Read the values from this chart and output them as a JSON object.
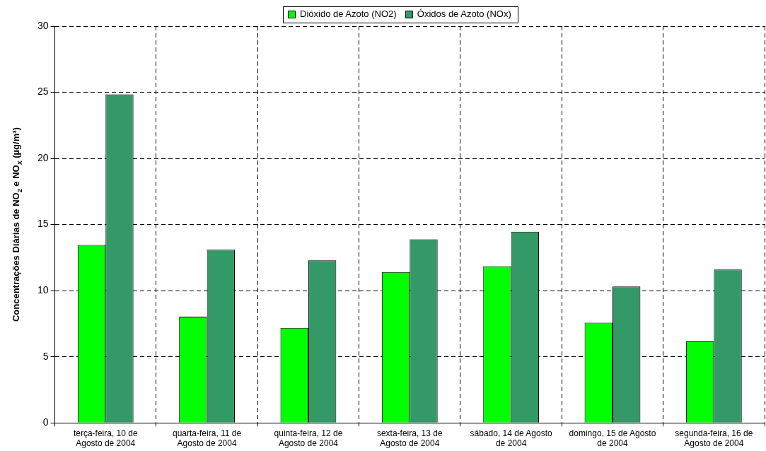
{
  "chart_data": {
    "type": "bar",
    "ylabel": "Concentrações Diárias de NO$_{2}$ e NO$_{X}$ (µg/m³)",
    "categories": [
      "terça-feira, 10 de Agosto de 2004",
      "quarta-feira, 11 de Agosto de 2004",
      "quinta-feira, 12 de Agosto de 2004",
      "sexta-feira, 13 de Agosto de 2004",
      "sábado, 14 de Agosto de 2004",
      "domingo, 15 de Agosto de 2004",
      "segunda-feira, 16 de Agosto de 2004"
    ],
    "series": [
      {
        "name": "Dióxido de Azoto (NO2)",
        "color": "#00ff00",
        "values": [
          13.45,
          8.03,
          7.19,
          11.41,
          11.85,
          7.57,
          6.16
        ]
      },
      {
        "name": "Óxidos de Azoto (NOx)",
        "color": "#339966",
        "values": [
          24.84,
          13.1,
          12.29,
          13.88,
          14.46,
          10.31,
          11.6
        ]
      }
    ],
    "ylim": [
      0,
      30
    ],
    "yticks": [
      0,
      5,
      10,
      15,
      20,
      25,
      30
    ],
    "grid": true,
    "legend": "top"
  }
}
